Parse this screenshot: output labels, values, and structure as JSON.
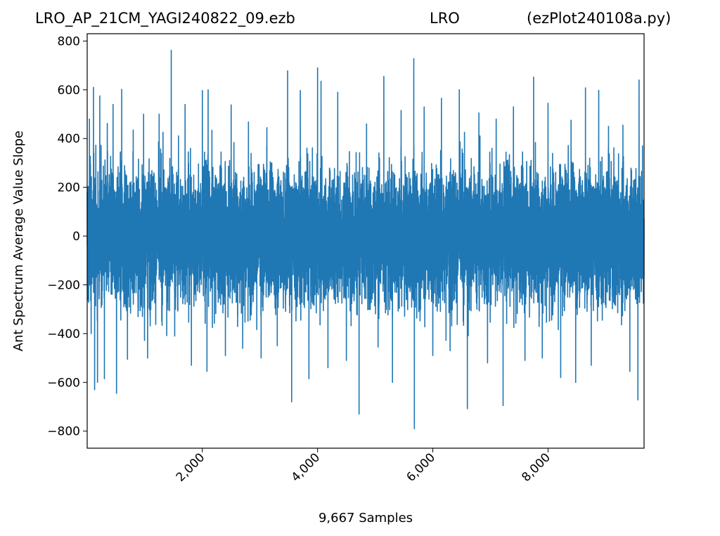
{
  "titles": {
    "left": "LRO_AP_21CM_YAGI240822_09.ezb",
    "center": "LRO",
    "right": "(ezPlot240108a.py)"
  },
  "chart_data": {
    "type": "line",
    "xlabel": "9,667 Samples",
    "ylabel": "Ant Spectrum Average Value Slope",
    "sample_count": 9667,
    "xlim": [
      1,
      9667
    ],
    "ylim": [
      -870,
      830
    ],
    "xticks": [
      2000,
      4000,
      6000,
      8000
    ],
    "xtick_labels": [
      "2,000",
      "4,000",
      "6,000",
      "8,000"
    ],
    "yticks": [
      -800,
      -600,
      -400,
      -200,
      0,
      200,
      400,
      600,
      800
    ],
    "ytick_labels": [
      "−800",
      "−600",
      "−400",
      "−200",
      "0",
      "200",
      "400",
      "600",
      "800"
    ],
    "series_color": "#1f77b4",
    "grid": false,
    "legend": "none",
    "noise_envelope": {
      "typical_range": [
        -350,
        350
      ],
      "min_observed": -790,
      "max_observed": 762
    },
    "spikes": [
      {
        "x": 40,
        "y": 480
      },
      {
        "x": 70,
        "y": -400
      },
      {
        "x": 110,
        "y": 610
      },
      {
        "x": 130,
        "y": -630
      },
      {
        "x": 180,
        "y": -600
      },
      {
        "x": 220,
        "y": 575
      },
      {
        "x": 300,
        "y": -585
      },
      {
        "x": 350,
        "y": 462
      },
      {
        "x": 450,
        "y": 540
      },
      {
        "x": 510,
        "y": -645
      },
      {
        "x": 600,
        "y": 602
      },
      {
        "x": 700,
        "y": -505
      },
      {
        "x": 800,
        "y": 435
      },
      {
        "x": 980,
        "y": 500
      },
      {
        "x": 1050,
        "y": -500
      },
      {
        "x": 1250,
        "y": 500
      },
      {
        "x": 1460,
        "y": 762
      },
      {
        "x": 1520,
        "y": -410
      },
      {
        "x": 1700,
        "y": 540
      },
      {
        "x": 1810,
        "y": -530
      },
      {
        "x": 2000,
        "y": 597
      },
      {
        "x": 2080,
        "y": -555
      },
      {
        "x": 2100,
        "y": 600
      },
      {
        "x": 2400,
        "y": -490
      },
      {
        "x": 2500,
        "y": 538
      },
      {
        "x": 2700,
        "y": -460
      },
      {
        "x": 2800,
        "y": 468
      },
      {
        "x": 3020,
        "y": -500
      },
      {
        "x": 3120,
        "y": 445
      },
      {
        "x": 3300,
        "y": -450
      },
      {
        "x": 3480,
        "y": 678
      },
      {
        "x": 3550,
        "y": -680
      },
      {
        "x": 3700,
        "y": 597
      },
      {
        "x": 3850,
        "y": -585
      },
      {
        "x": 4000,
        "y": 690
      },
      {
        "x": 4060,
        "y": 635
      },
      {
        "x": 4180,
        "y": -540
      },
      {
        "x": 4350,
        "y": 590
      },
      {
        "x": 4500,
        "y": -510
      },
      {
        "x": 4720,
        "y": -730
      },
      {
        "x": 4850,
        "y": 460
      },
      {
        "x": 5050,
        "y": -455
      },
      {
        "x": 5150,
        "y": 655
      },
      {
        "x": 5300,
        "y": -600
      },
      {
        "x": 5450,
        "y": 515
      },
      {
        "x": 5670,
        "y": 728
      },
      {
        "x": 5680,
        "y": -790
      },
      {
        "x": 5850,
        "y": 530
      },
      {
        "x": 6000,
        "y": -490
      },
      {
        "x": 6150,
        "y": 565
      },
      {
        "x": 6300,
        "y": -470
      },
      {
        "x": 6460,
        "y": 600
      },
      {
        "x": 6600,
        "y": -708
      },
      {
        "x": 6800,
        "y": 505
      },
      {
        "x": 6950,
        "y": -520
      },
      {
        "x": 7100,
        "y": 480
      },
      {
        "x": 7220,
        "y": -695
      },
      {
        "x": 7400,
        "y": 530
      },
      {
        "x": 7600,
        "y": -510
      },
      {
        "x": 7750,
        "y": 652
      },
      {
        "x": 7900,
        "y": -500
      },
      {
        "x": 8000,
        "y": 545
      },
      {
        "x": 8220,
        "y": -580
      },
      {
        "x": 8400,
        "y": 475
      },
      {
        "x": 8480,
        "y": -600
      },
      {
        "x": 8650,
        "y": 608
      },
      {
        "x": 8750,
        "y": -530
      },
      {
        "x": 8880,
        "y": 598
      },
      {
        "x": 9050,
        "y": 450
      },
      {
        "x": 9300,
        "y": 455
      },
      {
        "x": 9420,
        "y": -555
      },
      {
        "x": 9560,
        "y": -672
      },
      {
        "x": 9580,
        "y": 640
      },
      {
        "x": 9640,
        "y": 370
      }
    ]
  }
}
